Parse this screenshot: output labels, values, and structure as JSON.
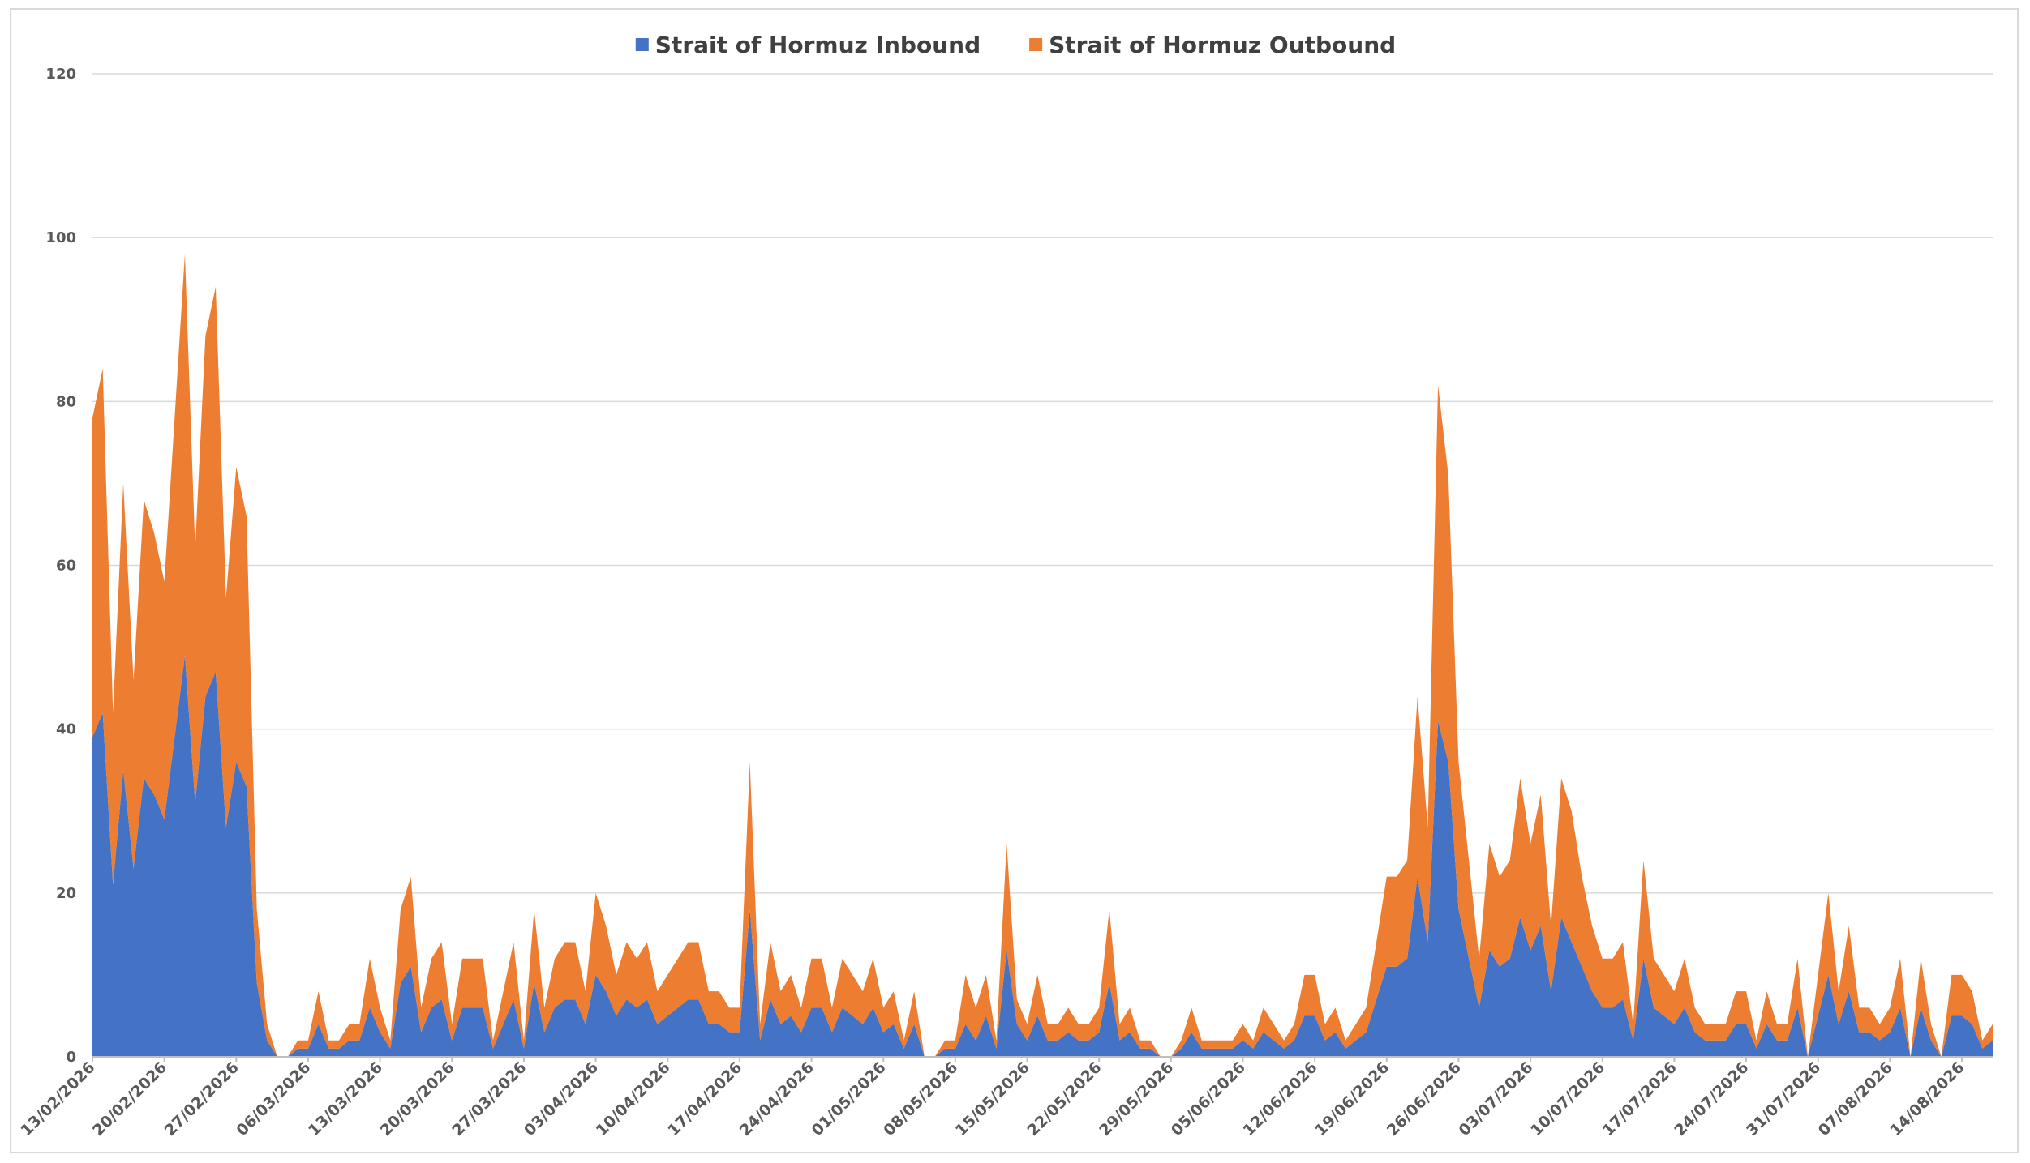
{
  "chart_data": {
    "type": "area",
    "stacked": true,
    "title": "",
    "xlabel": "",
    "ylabel": "",
    "ylim": [
      0,
      120
    ],
    "yticks": [
      0,
      20,
      40,
      60,
      80,
      100,
      120
    ],
    "grid": "horizontal",
    "legend": "top-center",
    "x_start": "13/02/2026",
    "x_tick_labels": [
      "13/02/2026",
      "20/02/2026",
      "27/02/2026",
      "06/03/2026",
      "13/03/2026",
      "20/03/2026",
      "27/03/2026",
      "03/04/2026",
      "10/04/2026",
      "17/04/2026",
      "24/04/2026",
      "01/05/2026",
      "08/05/2026",
      "15/05/2026",
      "22/05/2026",
      "29/05/2026",
      "05/06/2026",
      "12/06/2026",
      "19/06/2026",
      "26/06/2026",
      "03/07/2026",
      "10/07/2026",
      "17/07/2026",
      "24/07/2026",
      "31/07/2026",
      "07/08/2026",
      "14/08/2026"
    ],
    "series": [
      {
        "name": "Strait of Hormuz Inbound",
        "color": "#4472c4",
        "values": [
          39,
          42,
          21,
          35,
          23,
          34,
          32,
          29,
          39,
          49,
          31,
          44,
          47,
          28,
          36,
          33,
          9,
          2,
          0,
          0,
          1,
          1,
          4,
          1,
          1,
          2,
          2,
          6,
          3,
          1,
          9,
          11,
          3,
          6,
          7,
          2,
          6,
          6,
          6,
          1,
          4,
          7,
          1,
          9,
          3,
          6,
          7,
          7,
          4,
          10,
          8,
          5,
          7,
          6,
          7,
          4,
          5,
          6,
          7,
          7,
          4,
          4,
          3,
          3,
          18,
          2,
          7,
          4,
          5,
          3,
          6,
          6,
          3,
          6,
          5,
          4,
          6,
          3,
          4,
          1,
          4,
          0,
          0,
          1,
          1,
          4,
          2,
          5,
          1,
          13,
          4,
          2,
          5,
          2,
          2,
          3,
          2,
          2,
          3,
          9,
          2,
          3,
          1,
          1,
          0,
          0,
          1,
          3,
          1,
          1,
          1,
          1,
          2,
          1,
          3,
          2,
          1,
          2,
          5,
          5,
          2,
          3,
          1,
          2,
          3,
          7,
          11,
          11,
          12,
          22,
          14,
          41,
          36,
          18,
          12,
          6,
          13,
          11,
          12,
          17,
          13,
          16,
          8,
          17,
          14,
          11,
          8,
          6,
          6,
          7,
          2,
          12,
          6,
          5,
          4,
          6,
          3,
          2,
          2,
          2,
          4,
          4,
          1,
          4,
          2,
          2,
          6,
          0,
          5,
          10,
          4,
          8,
          3,
          3,
          2,
          3,
          6,
          0,
          6,
          2,
          0,
          5,
          5,
          4,
          1,
          2
        ]
      },
      {
        "name": "Strait of Hormuz Outbound",
        "color": "#ed7d31",
        "values": [
          39,
          42,
          21,
          35,
          23,
          34,
          32,
          29,
          39,
          49,
          31,
          44,
          47,
          28,
          36,
          33,
          9,
          2,
          0,
          0,
          1,
          1,
          4,
          1,
          1,
          2,
          2,
          6,
          3,
          1,
          9,
          11,
          3,
          6,
          7,
          2,
          6,
          6,
          6,
          1,
          4,
          7,
          1,
          9,
          3,
          6,
          7,
          7,
          4,
          10,
          8,
          5,
          7,
          6,
          7,
          4,
          5,
          6,
          7,
          7,
          4,
          4,
          3,
          3,
          18,
          2,
          7,
          4,
          5,
          3,
          6,
          6,
          3,
          6,
          5,
          4,
          6,
          3,
          4,
          1,
          4,
          0,
          0,
          1,
          1,
          6,
          4,
          5,
          1,
          13,
          3,
          2,
          5,
          2,
          2,
          3,
          2,
          2,
          3,
          9,
          2,
          3,
          1,
          1,
          0,
          0,
          1,
          3,
          1,
          1,
          1,
          1,
          2,
          1,
          3,
          2,
          1,
          2,
          5,
          5,
          2,
          3,
          1,
          2,
          3,
          7,
          11,
          11,
          12,
          22,
          14,
          41,
          35,
          18,
          12,
          6,
          13,
          11,
          12,
          17,
          13,
          16,
          8,
          17,
          16,
          11,
          8,
          6,
          6,
          7,
          2,
          12,
          6,
          5,
          4,
          6,
          3,
          2,
          2,
          2,
          4,
          4,
          1,
          4,
          2,
          2,
          6,
          0,
          5,
          10,
          4,
          8,
          3,
          3,
          2,
          3,
          6,
          0,
          6,
          2,
          0,
          5,
          5,
          4,
          1,
          2
        ]
      }
    ]
  }
}
